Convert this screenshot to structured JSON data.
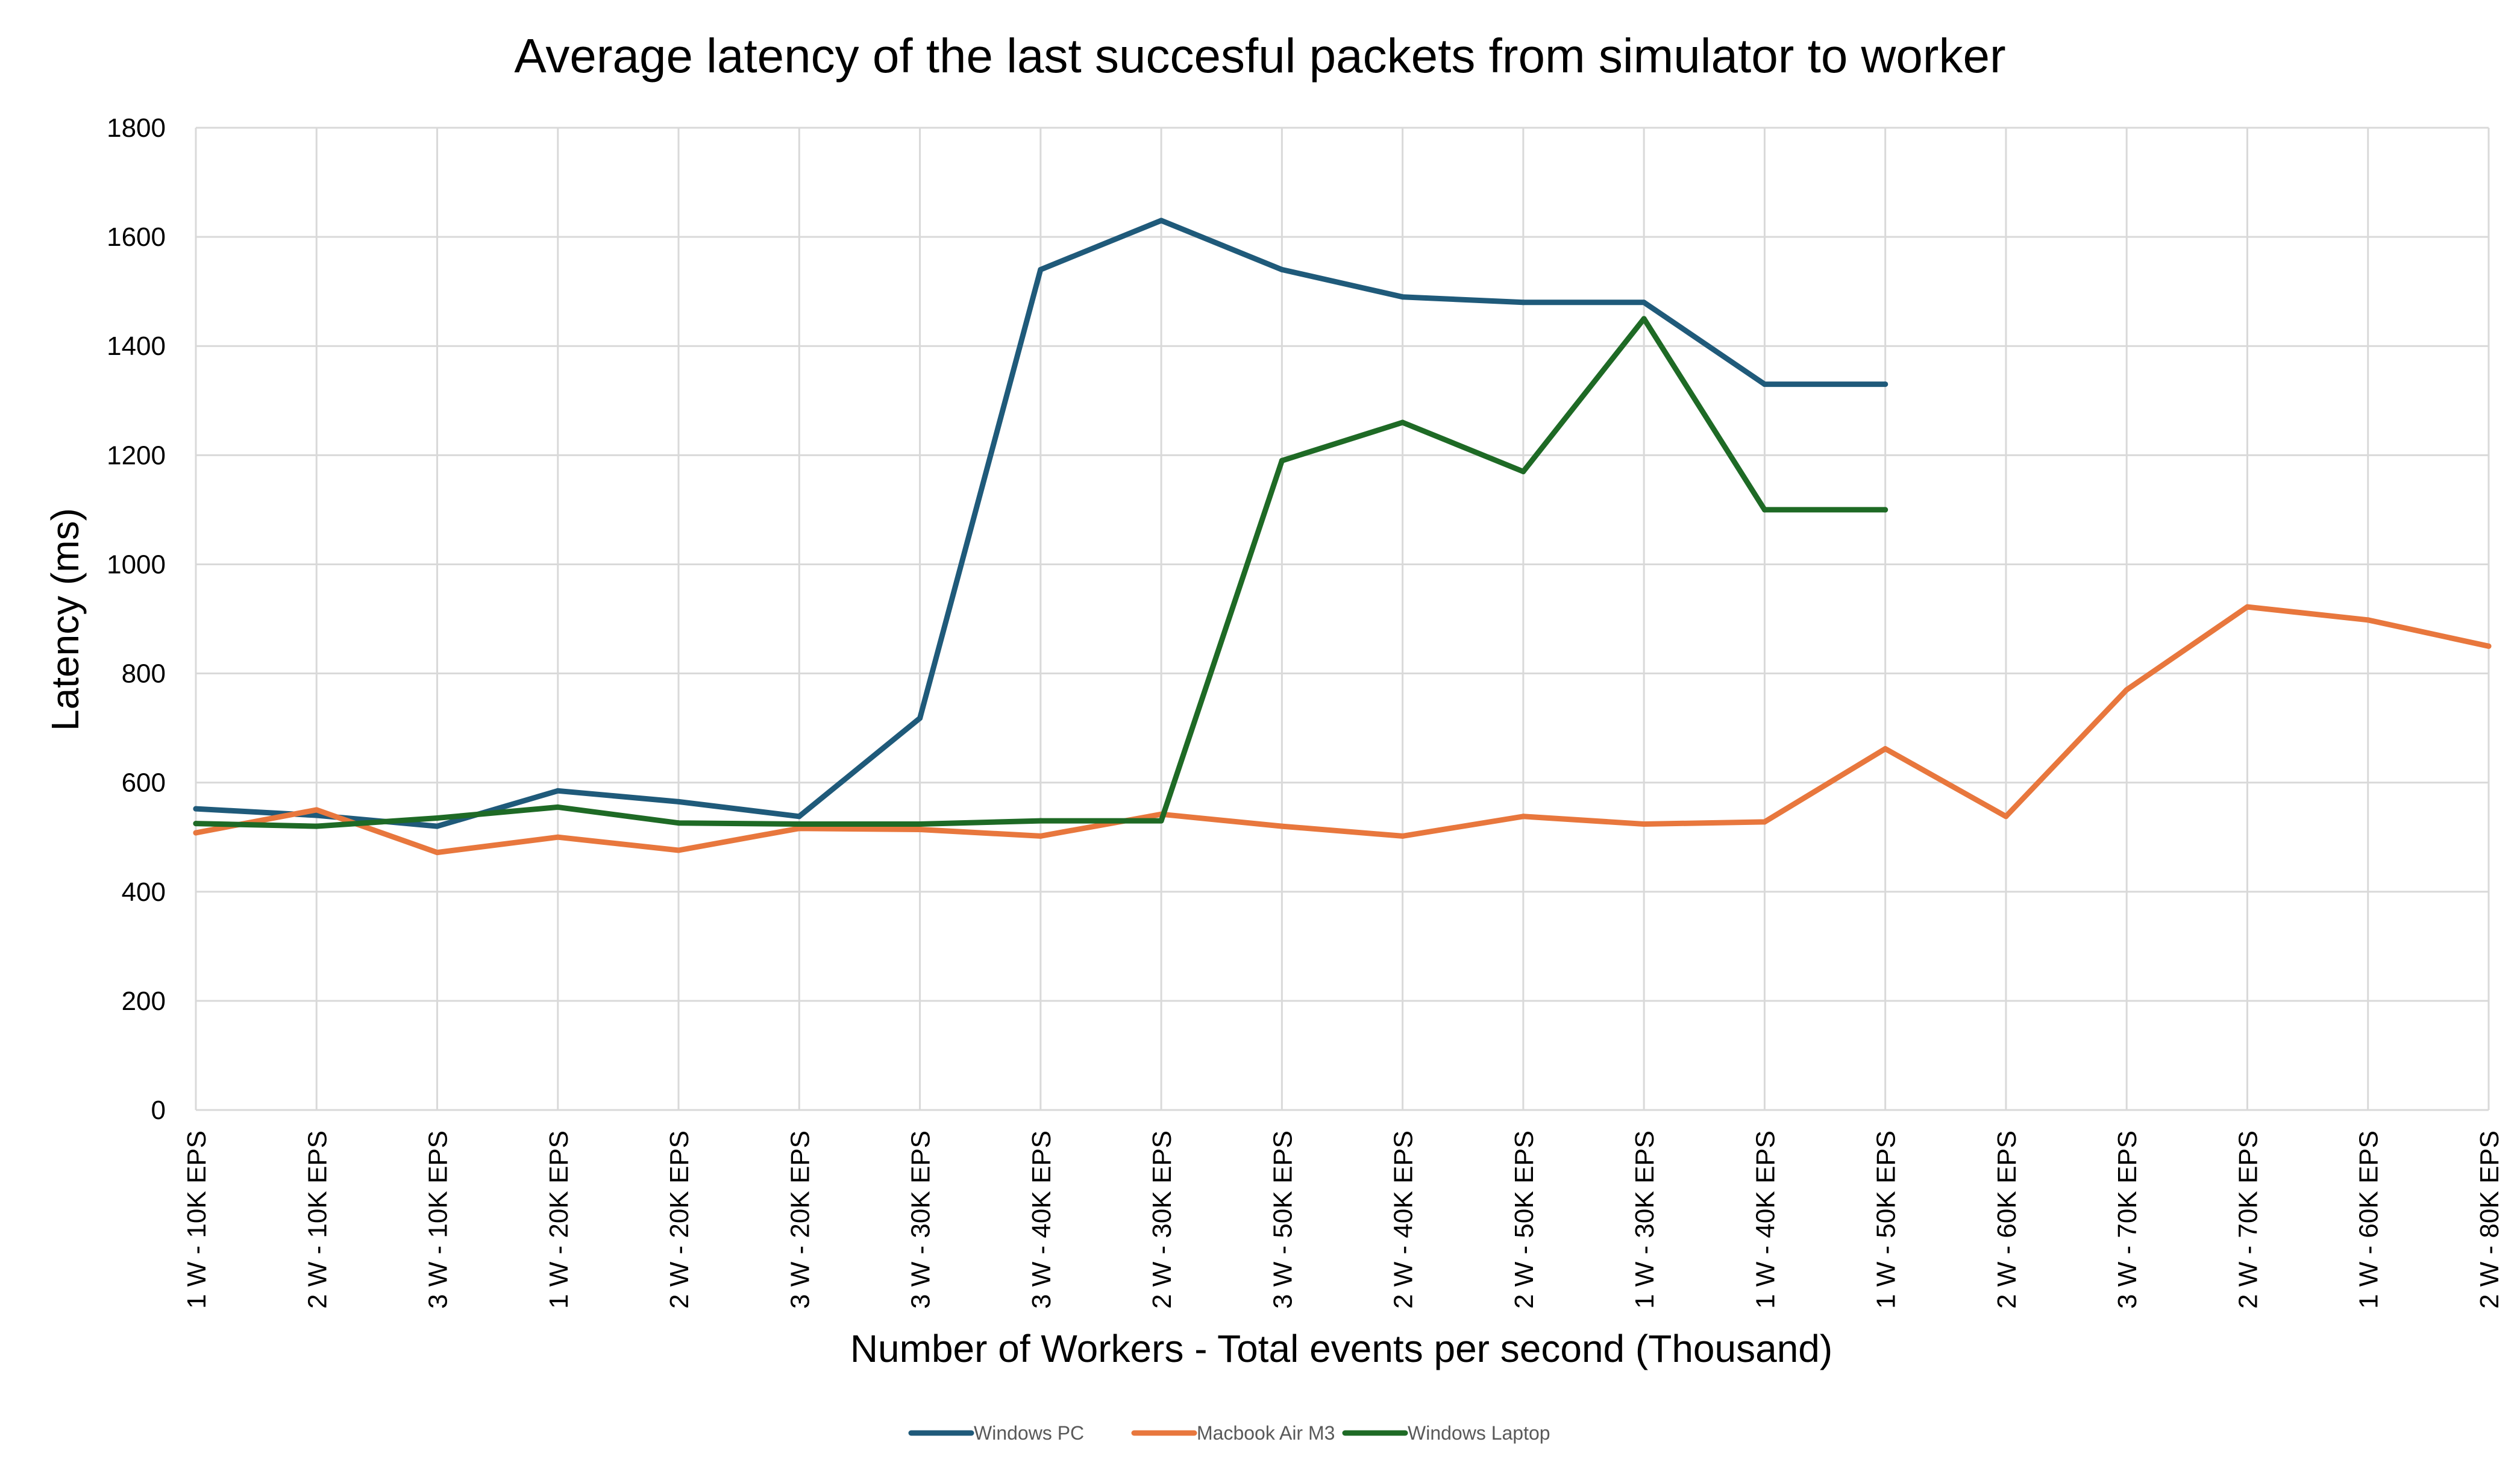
{
  "chart_data": {
    "type": "line",
    "title": "Average latency of the last succesful packets from simulator to worker",
    "xlabel": "Number of Workers - Total events per second (Thousand)",
    "ylabel": "Latency (ms)",
    "ylim": [
      0,
      1800
    ],
    "yticks": [
      0,
      200,
      400,
      600,
      800,
      1000,
      1200,
      1400,
      1600,
      1800
    ],
    "grid": true,
    "legend_position": "bottom",
    "categories": [
      "1 W - 10K EPS",
      "2 W - 10K EPS",
      "3 W - 10K EPS",
      "1 W - 20K EPS",
      "2 W - 20K EPS",
      "3 W - 20K EPS",
      "3 W - 30K EPS",
      "3 W - 40K EPS",
      "2 W - 30K EPS",
      "3 W - 50K EPS",
      "2 W - 40K EPS",
      "2 W - 50K EPS",
      "1 W - 30K EPS",
      "1 W - 40K EPS",
      "1 W - 50K EPS",
      "2 W - 60K EPS",
      "3 W - 70K EPS",
      "2 W - 70K EPS",
      "1 W - 60K EPS",
      "2 W - 80K EPS"
    ],
    "series": [
      {
        "name": "Windows PC",
        "color": "#1f5a7a",
        "values": [
          552,
          540,
          520,
          585,
          565,
          538,
          718,
          1540,
          1630,
          1540,
          1490,
          1480,
          1480,
          1330,
          1330,
          null,
          null,
          null,
          null,
          null
        ]
      },
      {
        "name": "Macbook Air M3",
        "color": "#e8773d",
        "values": [
          508,
          550,
          472,
          500,
          476,
          516,
          514,
          502,
          542,
          520,
          502,
          538,
          524,
          528,
          662,
          538,
          770,
          922,
          898,
          850
        ]
      },
      {
        "name": "Windows Laptop",
        "color": "#1e6a25",
        "values": [
          525,
          520,
          535,
          555,
          526,
          524,
          524,
          530,
          530,
          1190,
          1260,
          1170,
          1450,
          1100,
          1100,
          null,
          null,
          null,
          null,
          null
        ]
      }
    ]
  }
}
